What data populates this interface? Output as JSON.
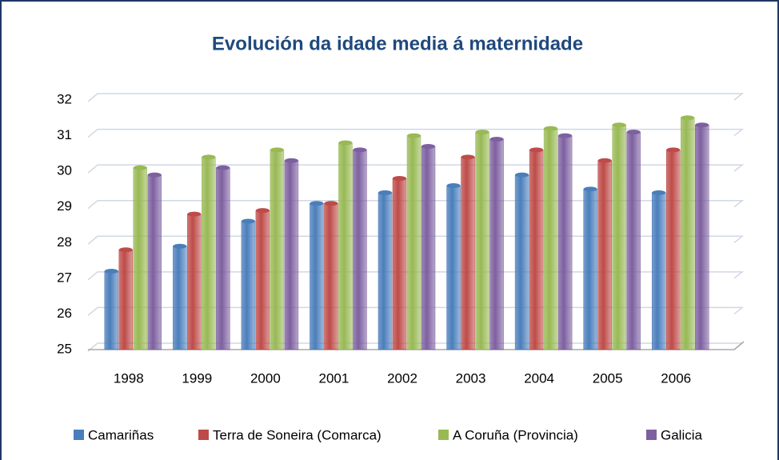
{
  "chart_data": {
    "type": "bar",
    "title": "Evolución da idade media á maternidade",
    "categories": [
      "1998",
      "1999",
      "2000",
      "2001",
      "2002",
      "2003",
      "2004",
      "2005",
      "2006"
    ],
    "series": [
      {
        "name": "Camariñas",
        "color": "#4a7ebb",
        "values": [
          27.2,
          27.9,
          28.6,
          29.1,
          29.4,
          29.6,
          29.9,
          29.5,
          29.4
        ]
      },
      {
        "name": "Terra de Soneira (Comarca)",
        "color": "#be4b48",
        "values": [
          27.8,
          28.8,
          28.9,
          29.1,
          29.8,
          30.4,
          30.6,
          30.3,
          30.6
        ]
      },
      {
        "name": "A Coruña  (Provincia)",
        "color": "#98b954",
        "values": [
          30.1,
          30.4,
          30.6,
          30.8,
          31.0,
          31.1,
          31.2,
          31.3,
          31.5
        ]
      },
      {
        "name": "Galicia",
        "color": "#7d60a0",
        "values": [
          29.9,
          30.1,
          30.3,
          30.6,
          30.7,
          30.9,
          31.0,
          31.1,
          31.3
        ]
      }
    ],
    "ylim": [
      25,
      32
    ],
    "yticks": [
      25,
      26,
      27,
      28,
      29,
      30,
      31,
      32
    ],
    "grid": true,
    "legend": "bottom"
  }
}
